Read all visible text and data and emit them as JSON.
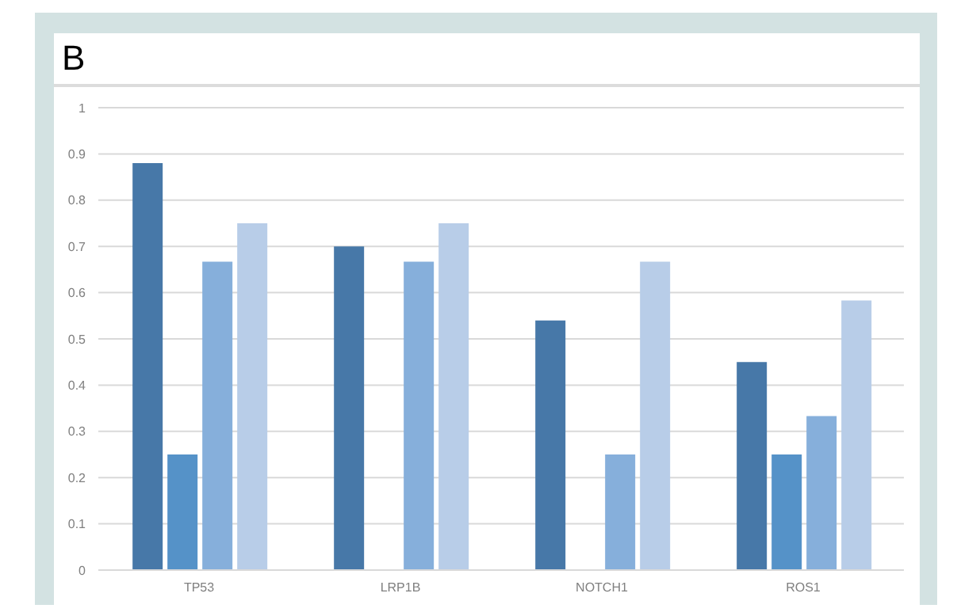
{
  "chart_data": {
    "type": "bar",
    "title": "B",
    "categories": [
      "TP53",
      "LRP1B",
      "NOTCH1",
      "ROS1"
    ],
    "series": [
      {
        "color": "#4778a8",
        "values": [
          0.88,
          0.7,
          0.54,
          0.45
        ]
      },
      {
        "color": "#5592c8",
        "values": [
          0.25,
          0,
          0,
          0.25
        ]
      },
      {
        "color": "#86afdb",
        "values": [
          0.667,
          0.667,
          0.25,
          0.333
        ]
      },
      {
        "color": "#b8cde8",
        "values": [
          0.75,
          0.75,
          0.667,
          0.583
        ]
      }
    ],
    "ylim": [
      0,
      1
    ],
    "yticks": [
      0,
      0.1,
      0.2,
      0.3,
      0.4,
      0.5,
      0.6,
      0.7,
      0.8,
      0.9,
      1
    ],
    "grid": "y",
    "legend": false
  }
}
